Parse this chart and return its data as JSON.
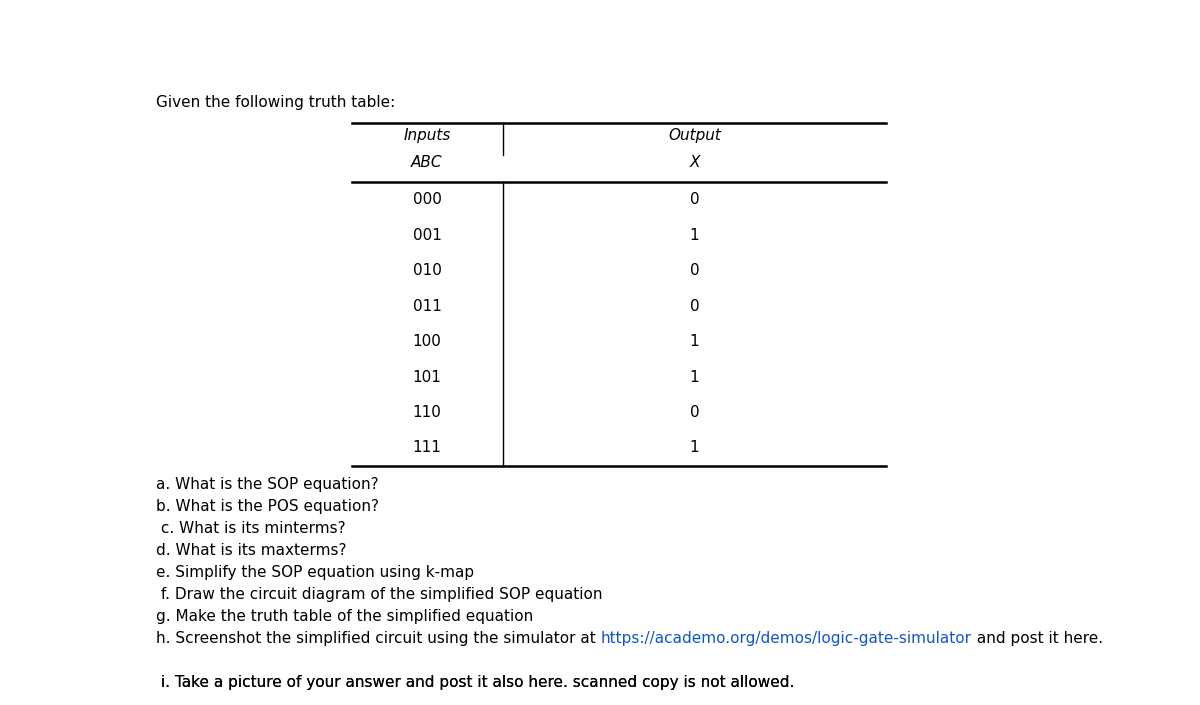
{
  "title_text": "Given the following truth table:",
  "table_inputs_label": "Inputs",
  "table_output_label": "Output",
  "table_abc_label": "ABC",
  "table_x_label": "X",
  "table_rows": [
    [
      "000",
      "0"
    ],
    [
      "001",
      "1"
    ],
    [
      "010",
      "0"
    ],
    [
      "011",
      "0"
    ],
    [
      "100",
      "1"
    ],
    [
      "101",
      "1"
    ],
    [
      "110",
      "0"
    ],
    [
      "111",
      "1"
    ]
  ],
  "questions_plain": [
    "a. What is the SOP equation?",
    "b. What is the POS equation?",
    " c. What is its minterms?",
    "d. What is its maxterms?",
    "e. Simplify the SOP equation using k-map",
    " f. Draw the circuit diagram of the simplified SOP equation",
    "g. Make the truth table of the simplified equation",
    "",
    "",
    " i. Take a picture of your answer and post it also here. scanned copy is not allowed."
  ],
  "h_before": "h. Screenshot the simplified circuit using the simulator at ",
  "h_link": "https://academo.org/demos/logic-gate-simulator",
  "h_after": " and post it here.",
  "link_color": "#1155CC",
  "bg_color": "#ffffff",
  "text_color": "#000000",
  "font_size": 11,
  "title_font_size": 11
}
